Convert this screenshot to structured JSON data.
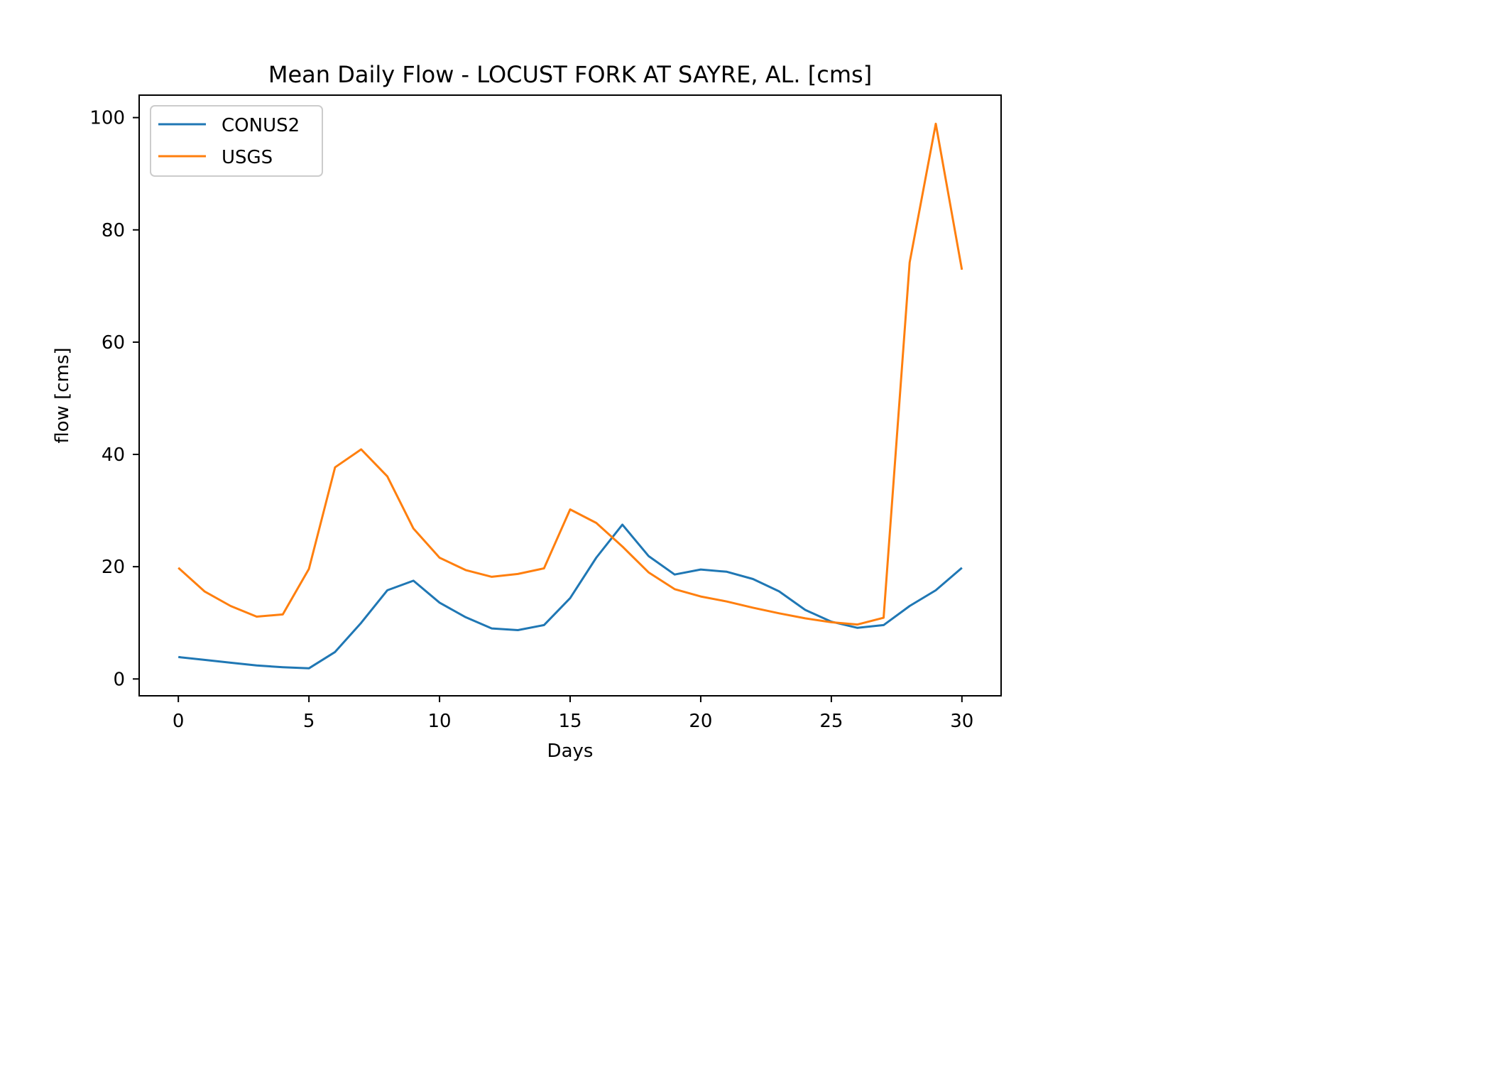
{
  "chart_data": {
    "type": "line",
    "title": "Mean Daily Flow - LOCUST FORK AT SAYRE, AL. [cms]",
    "xlabel": "Days",
    "ylabel": "flow [cms]",
    "xlim": [
      -1.5,
      31.5
    ],
    "ylim": [
      -3,
      104
    ],
    "xticks": [
      0,
      5,
      10,
      15,
      20,
      25,
      30
    ],
    "yticks": [
      0,
      20,
      40,
      60,
      80,
      100
    ],
    "grid": false,
    "legend_position": "upper-left",
    "x": [
      0,
      1,
      2,
      3,
      4,
      5,
      6,
      7,
      8,
      9,
      10,
      11,
      12,
      13,
      14,
      15,
      16,
      17,
      18,
      19,
      20,
      21,
      22,
      23,
      24,
      25,
      26,
      27,
      28,
      29,
      30
    ],
    "series": [
      {
        "name": "CONUS2",
        "color": "#1f77b4",
        "values": [
          3.9,
          3.4,
          2.9,
          2.4,
          2.1,
          1.9,
          4.8,
          10.0,
          15.8,
          17.5,
          13.6,
          11.0,
          9.0,
          8.7,
          9.6,
          14.4,
          21.6,
          27.5,
          21.9,
          18.6,
          19.5,
          19.1,
          17.8,
          15.6,
          12.3,
          10.2,
          9.1,
          9.6,
          13.0,
          15.8,
          19.8
        ]
      },
      {
        "name": "USGS",
        "color": "#ff7f0e",
        "values": [
          19.8,
          15.6,
          13.0,
          11.1,
          11.5,
          19.6,
          37.7,
          40.9,
          36.1,
          26.8,
          21.6,
          19.4,
          18.2,
          18.7,
          19.7,
          30.2,
          27.8,
          23.6,
          19.0,
          16.0,
          14.7,
          13.8,
          12.7,
          11.7,
          10.8,
          10.1,
          9.7,
          10.9,
          74.2,
          98.9,
          72.9
        ]
      }
    ]
  }
}
